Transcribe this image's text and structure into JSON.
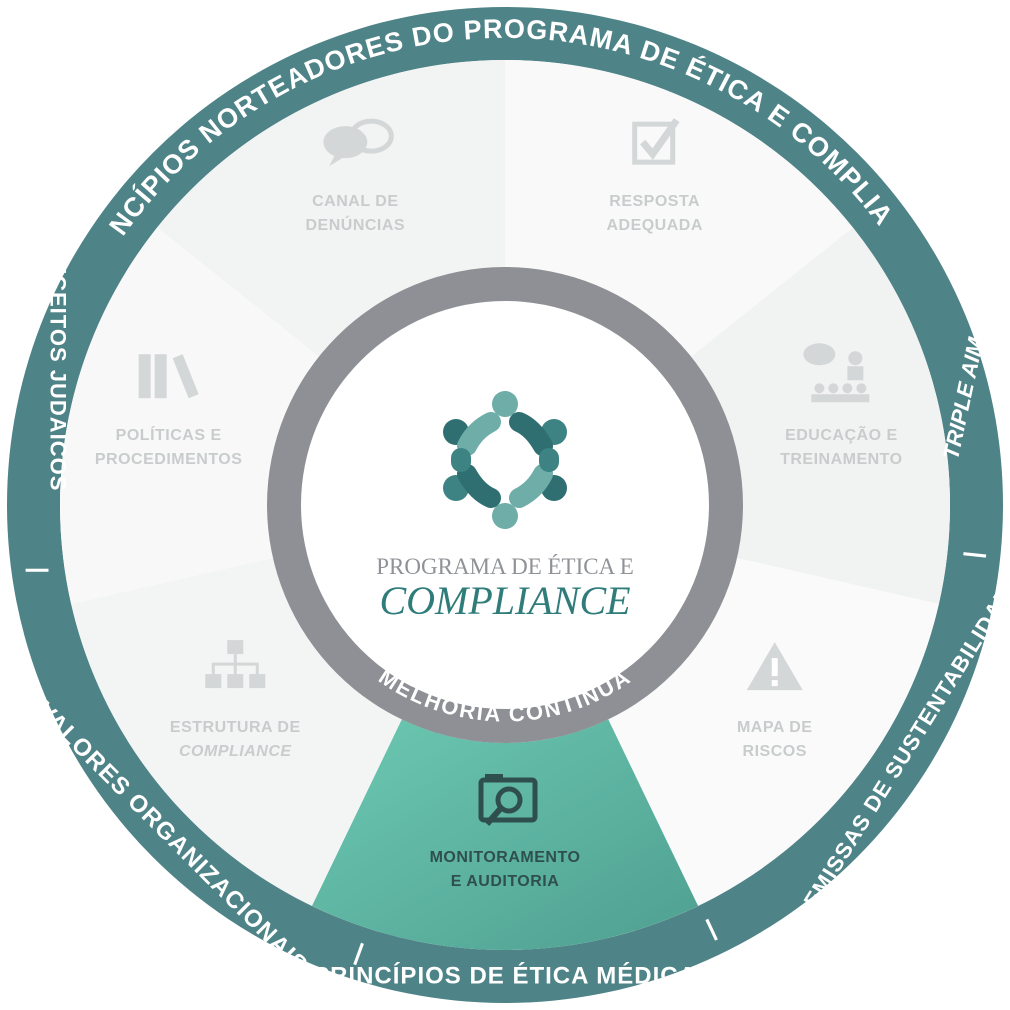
{
  "outer_ring": {
    "top_text": "PRINCÍPIOS NORTEADORES DO PROGRAMA DE ÉTICA E COMPLIANCE",
    "left_text": "PRECEITOS JUDAICOS",
    "bottom_left_text": "VALORES ORGANIZACIONAIS",
    "bottom_text": "PRINCÍPIOS DE ÉTICA MÉDICA",
    "bottom_right_text": "PREMISSAS DE SUSTENTABILIDADE",
    "right_text": "TRIPLE AIM",
    "separator": "|"
  },
  "segments": [
    {
      "id": "canal",
      "line1": "CANAL DE",
      "line2": "DENÚNCIAS",
      "icon": "speech-bubbles-icon"
    },
    {
      "id": "resposta",
      "line1": "RESPOSTA",
      "line2": "ADEQUADA",
      "icon": "checkbox-icon"
    },
    {
      "id": "educacao",
      "line1": "EDUCAÇÃO E",
      "line2": "TREINAMENTO",
      "icon": "classroom-icon"
    },
    {
      "id": "mapa",
      "line1": "MAPA DE",
      "line2": "RISCOS",
      "icon": "warning-icon"
    },
    {
      "id": "monitoramento",
      "line1": "MONITORAMENTO",
      "line2": "E AUDITORIA",
      "icon": "magnifier-folder-icon",
      "active": true
    },
    {
      "id": "estrutura",
      "line1": "ESTRUTURA DE",
      "line2": "COMPLIANCE",
      "icon": "org-chart-icon"
    },
    {
      "id": "politicas",
      "line1": "POLÍTICAS E",
      "line2": "PROCEDIMENTOS",
      "icon": "books-icon"
    }
  ],
  "center": {
    "title": "PROGRAMA DE ÉTICA E",
    "main": "COMPLIANCE",
    "ring_label": "MELHORIA CONTÍNUA",
    "logo": "people-circle-logo"
  },
  "colors": {
    "ring": "#4e8387",
    "active_segment": "#5fbfa9",
    "segment_text": "#c9cccd",
    "active_text": "#2f4f4f",
    "center_ring": "#8e9095"
  }
}
